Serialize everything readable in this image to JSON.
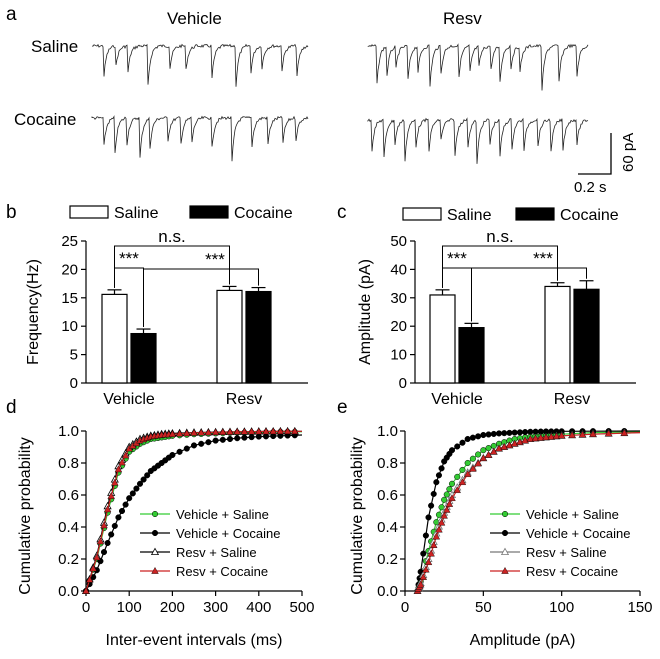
{
  "panels": {
    "a": "a",
    "b": "b",
    "c": "c",
    "d": "d",
    "e": "e"
  },
  "traces": {
    "col_titles": [
      "Vehicle",
      "Resv"
    ],
    "row_labels": [
      "Saline",
      "Cocaine"
    ],
    "scale_current": "60 pA",
    "scale_time": "0.2 s"
  },
  "colors": {
    "vehicle_saline": "#33cc33",
    "vehicle_cocaine": "#000000",
    "resv_saline": "#000000",
    "resv_cocaine": "#cc2222",
    "trace": "#222222"
  },
  "chart_data": [
    {
      "id": "b",
      "type": "bar",
      "ylabel": "Frequency(Hz)",
      "ylim": [
        0,
        25
      ],
      "yticks": [
        0,
        5,
        10,
        15,
        20,
        25
      ],
      "categories": [
        "Vehicle",
        "Resv"
      ],
      "legend": [
        "Saline",
        "Cocaine"
      ],
      "series": [
        {
          "name": "Saline",
          "values": [
            15.6,
            16.3
          ],
          "errors": [
            0.8,
            0.7
          ]
        },
        {
          "name": "Cocaine",
          "values": [
            8.7,
            16.1
          ],
          "errors": [
            0.8,
            0.7
          ]
        }
      ],
      "significance": [
        {
          "label": "***",
          "from": [
            0,
            0
          ],
          "to": [
            0,
            1
          ]
        },
        {
          "label": "***",
          "from": [
            0,
            1
          ],
          "to": [
            1,
            1
          ]
        },
        {
          "label": "n.s.",
          "from": [
            0,
            0
          ],
          "to": [
            1,
            0
          ]
        }
      ]
    },
    {
      "id": "c",
      "type": "bar",
      "ylabel": "Amplitude (pA)",
      "ylim": [
        0,
        50
      ],
      "yticks": [
        0,
        10,
        20,
        30,
        40,
        50
      ],
      "categories": [
        "Vehicle",
        "Resv"
      ],
      "legend": [
        "Saline",
        "Cocaine"
      ],
      "series": [
        {
          "name": "Saline",
          "values": [
            31,
            34
          ],
          "errors": [
            1.8,
            1.3
          ]
        },
        {
          "name": "Cocaine",
          "values": [
            19.5,
            33
          ],
          "errors": [
            1.5,
            3.0
          ]
        }
      ],
      "significance": [
        {
          "label": "***",
          "from": [
            0,
            0
          ],
          "to": [
            0,
            1
          ]
        },
        {
          "label": "***",
          "from": [
            0,
            1
          ],
          "to": [
            1,
            1
          ]
        },
        {
          "label": "n.s.",
          "from": [
            0,
            0
          ],
          "to": [
            1,
            0
          ]
        }
      ]
    },
    {
      "id": "d",
      "type": "line",
      "xlabel": "Inter-event intervals (ms)",
      "ylabel": "Cumulative probability",
      "xlim": [
        0,
        500
      ],
      "ylim": [
        0,
        1.0
      ],
      "xticks": [
        0,
        100,
        200,
        300,
        400,
        500
      ],
      "yticks": [
        0.0,
        0.2,
        0.4,
        0.6,
        0.8,
        1.0
      ],
      "series": [
        {
          "name": "Vehicle + Saline",
          "color": "#33cc33",
          "marker": "circle-filled",
          "x": [
            0,
            25,
            50,
            75,
            100,
            125,
            150,
            175,
            200,
            250,
            300,
            350,
            400,
            450,
            500
          ],
          "y": [
            0,
            0.2,
            0.49,
            0.74,
            0.87,
            0.92,
            0.95,
            0.96,
            0.97,
            0.98,
            0.985,
            0.99,
            0.99,
            0.995,
            0.995
          ]
        },
        {
          "name": "Vehicle + Cocaine",
          "color": "#000000",
          "marker": "circle-filled",
          "x": [
            0,
            25,
            50,
            75,
            100,
            125,
            150,
            175,
            200,
            250,
            300,
            350,
            400,
            450,
            500
          ],
          "y": [
            0,
            0.13,
            0.3,
            0.46,
            0.58,
            0.67,
            0.75,
            0.8,
            0.85,
            0.91,
            0.94,
            0.955,
            0.965,
            0.97,
            0.975
          ]
        },
        {
          "name": "Resv + Saline",
          "color": "#000000",
          "marker": "triangle-open",
          "x": [
            0,
            25,
            50,
            75,
            100,
            125,
            150,
            175,
            200,
            250,
            300,
            350,
            400,
            450,
            500
          ],
          "y": [
            0,
            0.22,
            0.53,
            0.78,
            0.9,
            0.95,
            0.97,
            0.98,
            0.985,
            0.99,
            0.993,
            0.995,
            0.997,
            0.998,
            0.998
          ]
        },
        {
          "name": "Resv + Cocaine",
          "color": "#cc2222",
          "marker": "triangle-filled",
          "x": [
            0,
            25,
            50,
            75,
            100,
            125,
            150,
            175,
            200,
            250,
            300,
            350,
            400,
            450,
            500
          ],
          "y": [
            0,
            0.21,
            0.51,
            0.76,
            0.89,
            0.94,
            0.965,
            0.975,
            0.98,
            0.988,
            0.992,
            0.995,
            0.997,
            0.998,
            0.998
          ]
        }
      ]
    },
    {
      "id": "e",
      "type": "line",
      "xlabel": "Amplitude (pA)",
      "ylabel": "Cumulative probability",
      "xlim": [
        0,
        150
      ],
      "ylim": [
        0,
        1.0
      ],
      "xticks": [
        0,
        50,
        100,
        150
      ],
      "yticks": [
        0.0,
        0.2,
        0.4,
        0.6,
        0.8,
        1.0
      ],
      "series": [
        {
          "name": "Vehicle + Saline",
          "color": "#33cc33",
          "marker": "circle-filled",
          "x": [
            8,
            10,
            15,
            20,
            25,
            30,
            40,
            50,
            60,
            70,
            80,
            90,
            100,
            120,
            150
          ],
          "y": [
            0,
            0.06,
            0.25,
            0.43,
            0.57,
            0.67,
            0.8,
            0.88,
            0.92,
            0.95,
            0.965,
            0.975,
            0.98,
            0.99,
            0.995
          ]
        },
        {
          "name": "Vehicle + Cocaine",
          "color": "#000000",
          "marker": "circle-filled",
          "x": [
            8,
            10,
            15,
            20,
            25,
            30,
            40,
            50,
            60,
            70,
            80,
            90,
            100,
            120,
            150
          ],
          "y": [
            0,
            0.12,
            0.46,
            0.68,
            0.81,
            0.88,
            0.95,
            0.975,
            0.985,
            0.99,
            0.995,
            0.997,
            0.998,
            0.999,
            1.0
          ]
        },
        {
          "name": "Resv + Saline",
          "color": "#777777",
          "marker": "triangle-open",
          "x": [
            8,
            10,
            15,
            20,
            25,
            30,
            40,
            50,
            60,
            70,
            80,
            90,
            100,
            120,
            150
          ],
          "y": [
            0,
            0.05,
            0.2,
            0.36,
            0.49,
            0.6,
            0.74,
            0.83,
            0.89,
            0.92,
            0.95,
            0.96,
            0.97,
            0.98,
            0.99
          ]
        },
        {
          "name": "Resv + Cocaine",
          "color": "#cc2222",
          "marker": "triangle-filled",
          "x": [
            8,
            10,
            15,
            20,
            25,
            30,
            40,
            50,
            60,
            70,
            80,
            90,
            100,
            120,
            150
          ],
          "y": [
            0,
            0.04,
            0.18,
            0.34,
            0.47,
            0.58,
            0.73,
            0.83,
            0.89,
            0.92,
            0.95,
            0.96,
            0.97,
            0.98,
            0.99
          ]
        }
      ]
    }
  ]
}
